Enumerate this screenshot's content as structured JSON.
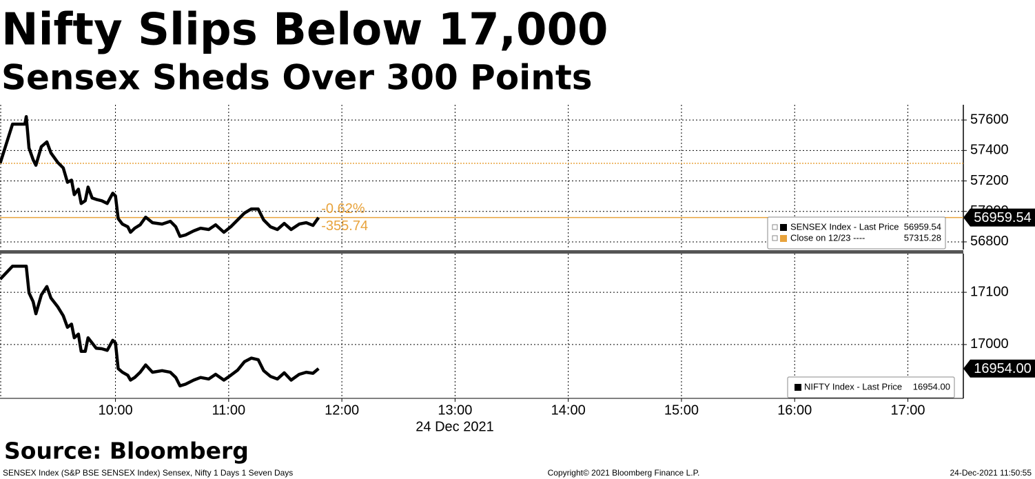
{
  "header": {
    "title": "Nifty Slips Below 17,000",
    "subtitle": "Sensex Sheds Over 300 Points"
  },
  "date_label": "24 Dec 2021",
  "source": "Source: Bloomberg",
  "footer": {
    "left": "SENSEX Index (S&P BSE SENSEX Index) Sensex, Nifty 1 Days 1 Seven Days",
    "center": "Copyright© 2021 Bloomberg Finance L.P.",
    "right": "24-Dec-2021 11:50:55"
  },
  "chart_data": [
    {
      "type": "line",
      "x": [
        8.982,
        9.091,
        9.2,
        9.212,
        9.236,
        9.273,
        9.297,
        9.345,
        9.394,
        9.43,
        9.491,
        9.539,
        9.576,
        9.612,
        9.636,
        9.673,
        9.697,
        9.733,
        9.758,
        9.794,
        9.83,
        9.879,
        9.927,
        9.976,
        10.0,
        10.024,
        10.061,
        10.109,
        10.133,
        10.17,
        10.218,
        10.267,
        10.327,
        10.412,
        10.485,
        10.533,
        10.57,
        10.618,
        10.691,
        10.752,
        10.824,
        10.885,
        10.958,
        11.018,
        11.079,
        11.139,
        11.2,
        11.261,
        11.309,
        11.37,
        11.43,
        11.491,
        11.552,
        11.624,
        11.685,
        11.745,
        11.794
      ],
      "series": [
        {
          "name": "SENSEX Index - Last Price",
          "color": "#000000",
          "values": [
            57317,
            57573,
            57573,
            57622,
            57416,
            57339,
            57303,
            57425,
            57456,
            57384,
            57321,
            57285,
            57191,
            57205,
            57110,
            57146,
            57052,
            57070,
            57160,
            57088,
            57079,
            57070,
            57052,
            57119,
            57101,
            56953,
            56917,
            56899,
            56863,
            56890,
            56912,
            56962,
            56926,
            56917,
            56935,
            56899,
            56836,
            56845,
            56872,
            56890,
            56881,
            56912,
            56863,
            56899,
            56944,
            56989,
            57016,
            57016,
            56944,
            56899,
            56881,
            56921,
            56881,
            56917,
            56926,
            56908,
            56959.54
          ],
          "last_price": {
            "value": 56959.54,
            "label": "56959.54"
          },
          "last_line_color": "#e8a33c"
        }
      ],
      "reference_lines": [
        {
          "name": "Close on 12/23 ----",
          "value": 57315.28,
          "color": "#e8a33c"
        }
      ],
      "annotations": {
        "change_pct": {
          "value": -0.62,
          "label": "-0.62%"
        },
        "change": -355.74,
        "color": "#e8a33c"
      },
      "xlim": [
        8.98,
        17.49
      ],
      "xticks": [
        10,
        11,
        12,
        13,
        14,
        15,
        16,
        17
      ],
      "ylim": [
        56750,
        57700
      ],
      "yticks": [
        56800,
        57000,
        57200,
        57400,
        57600
      ],
      "grid": true
    },
    {
      "type": "line",
      "x": [
        8.982,
        9.091,
        9.2,
        9.212,
        9.236,
        9.273,
        9.297,
        9.345,
        9.394,
        9.43,
        9.491,
        9.539,
        9.576,
        9.612,
        9.636,
        9.673,
        9.697,
        9.733,
        9.758,
        9.794,
        9.83,
        9.879,
        9.927,
        9.976,
        10.0,
        10.024,
        10.061,
        10.109,
        10.133,
        10.17,
        10.218,
        10.267,
        10.327,
        10.412,
        10.485,
        10.533,
        10.57,
        10.618,
        10.691,
        10.752,
        10.824,
        10.885,
        10.958,
        11.018,
        11.079,
        11.139,
        11.2,
        11.261,
        11.309,
        11.37,
        11.43,
        11.491,
        11.552,
        11.624,
        11.685,
        11.745,
        11.794
      ],
      "series": [
        {
          "name": "NIFTY Index - Last Price",
          "color": "#000000",
          "values": [
            17125,
            17150,
            17150,
            17150,
            17099,
            17082,
            17059,
            17095,
            17111,
            17089,
            17072,
            17055,
            17033,
            17039,
            17013,
            17020,
            16987,
            16987,
            17013,
            17003,
            16993,
            16992,
            16989,
            17008,
            17003,
            16954,
            16947,
            16941,
            16932,
            16937,
            16947,
            16961,
            16947,
            16950,
            16947,
            16937,
            16921,
            16924,
            16932,
            16937,
            16934,
            16943,
            16932,
            16941,
            16951,
            16967,
            16974,
            16971,
            16950,
            16939,
            16934,
            16946,
            16932,
            16943,
            16947,
            16945,
            16954
          ],
          "last_price": {
            "value": 16954,
            "label": "16954.00"
          }
        }
      ],
      "xlim": [
        8.98,
        17.49
      ],
      "xticks": [
        {
          "value": 10,
          "label": "10:00"
        },
        {
          "value": 11,
          "label": "11:00"
        },
        {
          "value": 12,
          "label": "12:00"
        },
        {
          "value": 13,
          "label": "13:00"
        },
        {
          "value": 14,
          "label": "14:00"
        },
        {
          "value": 15,
          "label": "15:00"
        },
        {
          "value": 16,
          "label": "16:00"
        },
        {
          "value": 17,
          "label": "17:00"
        }
      ],
      "ylim": [
        16897,
        17174
      ],
      "yticks": [
        17000,
        17100
      ],
      "grid": true
    }
  ]
}
